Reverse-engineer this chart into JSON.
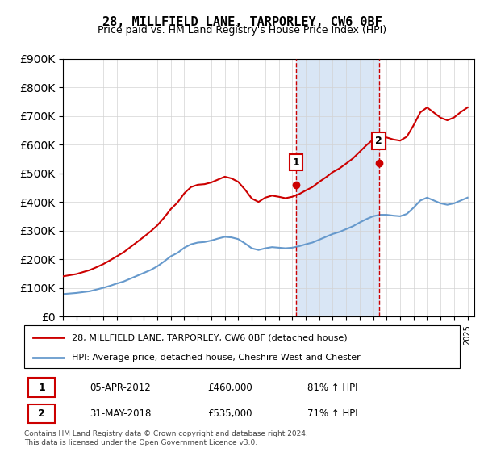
{
  "title": "28, MILLFIELD LANE, TARPORLEY, CW6 0BF",
  "subtitle": "Price paid vs. HM Land Registry's House Price Index (HPI)",
  "legend_line1": "28, MILLFIELD LANE, TARPORLEY, CW6 0BF (detached house)",
  "legend_line2": "HPI: Average price, detached house, Cheshire West and Chester",
  "transaction1_label": "1",
  "transaction1_date": "05-APR-2012",
  "transaction1_price": "£460,000",
  "transaction1_hpi": "81% ↑ HPI",
  "transaction1_year": 2012.27,
  "transaction1_value": 460000,
  "transaction2_label": "2",
  "transaction2_date": "31-MAY-2018",
  "transaction2_price": "£535,000",
  "transaction2_hpi": "71% ↑ HPI",
  "transaction2_year": 2018.42,
  "transaction2_value": 535000,
  "footnote": "Contains HM Land Registry data © Crown copyright and database right 2024.\nThis data is licensed under the Open Government Licence v3.0.",
  "red_color": "#cc0000",
  "blue_color": "#6699cc",
  "shade_color": "#d9e6f5",
  "marker_box_color": "#cc0000",
  "background_color": "#ffffff",
  "ylim": [
    0,
    900000
  ],
  "xlim_start": 1995.0,
  "xlim_end": 2025.5,
  "hpi_years": [
    1995,
    1995.5,
    1996,
    1996.5,
    1997,
    1997.5,
    1998,
    1998.5,
    1999,
    1999.5,
    2000,
    2000.5,
    2001,
    2001.5,
    2002,
    2002.5,
    2003,
    2003.5,
    2004,
    2004.5,
    2005,
    2005.5,
    2006,
    2006.5,
    2007,
    2007.5,
    2008,
    2008.5,
    2009,
    2009.5,
    2010,
    2010.5,
    2011,
    2011.5,
    2012,
    2012.5,
    2013,
    2013.5,
    2014,
    2014.5,
    2015,
    2015.5,
    2016,
    2016.5,
    2017,
    2017.5,
    2018,
    2018.5,
    2019,
    2019.5,
    2020,
    2020.5,
    2021,
    2021.5,
    2022,
    2022.5,
    2023,
    2023.5,
    2024,
    2024.5,
    2025
  ],
  "hpi_values": [
    78000,
    80000,
    82000,
    85000,
    88000,
    94000,
    100000,
    107000,
    115000,
    122000,
    132000,
    142000,
    152000,
    162000,
    175000,
    192000,
    210000,
    222000,
    240000,
    252000,
    258000,
    260000,
    265000,
    272000,
    278000,
    276000,
    270000,
    255000,
    238000,
    232000,
    238000,
    242000,
    240000,
    238000,
    240000,
    245000,
    252000,
    258000,
    268000,
    278000,
    288000,
    295000,
    305000,
    315000,
    328000,
    340000,
    350000,
    355000,
    355000,
    352000,
    350000,
    358000,
    380000,
    405000,
    415000,
    405000,
    395000,
    390000,
    395000,
    405000,
    415000
  ],
  "prop_years": [
    1995,
    1995.5,
    1996,
    1996.5,
    1997,
    1997.5,
    1998,
    1998.5,
    1999,
    1999.5,
    2000,
    2000.5,
    2001,
    2001.5,
    2002,
    2002.5,
    2003,
    2003.5,
    2004,
    2004.5,
    2005,
    2005.5,
    2006,
    2006.5,
    2007,
    2007.5,
    2008,
    2008.5,
    2009,
    2009.5,
    2010,
    2010.5,
    2011,
    2011.5,
    2012,
    2012.5,
    2013,
    2013.5,
    2014,
    2014.5,
    2015,
    2015.5,
    2016,
    2016.5,
    2017,
    2017.5,
    2018,
    2018.5,
    2019,
    2019.5,
    2020,
    2020.5,
    2021,
    2021.5,
    2022,
    2022.5,
    2023,
    2023.5,
    2024,
    2024.5,
    2025
  ],
  "prop_values": [
    140000,
    144000,
    148000,
    155000,
    162000,
    172000,
    183000,
    196000,
    210000,
    224000,
    242000,
    260000,
    278000,
    297000,
    318000,
    345000,
    375000,
    398000,
    430000,
    452000,
    460000,
    462000,
    468000,
    478000,
    488000,
    482000,
    470000,
    443000,
    412000,
    400000,
    415000,
    422000,
    418000,
    413000,
    418000,
    427000,
    440000,
    452000,
    470000,
    486000,
    504000,
    517000,
    534000,
    552000,
    575000,
    598000,
    618000,
    628000,
    625000,
    618000,
    614000,
    628000,
    668000,
    713000,
    730000,
    712000,
    694000,
    685000,
    695000,
    714000,
    730000
  ]
}
